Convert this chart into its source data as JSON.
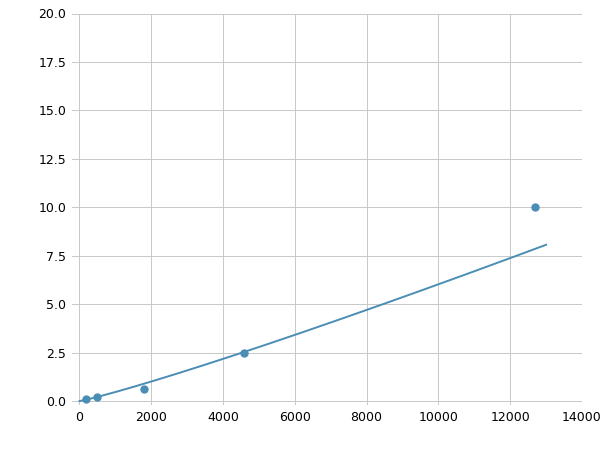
{
  "x_data": [
    200,
    500,
    1800,
    4600,
    12700
  ],
  "y_data": [
    0.1,
    0.2,
    0.6,
    2.5,
    10.0
  ],
  "x_curve_start": 0,
  "x_curve_end": 13000,
  "line_color": "#4a8db5",
  "marker_color": "#4a8db5",
  "marker_size": 5,
  "line_width": 1.4,
  "xlim": [
    -200,
    14000
  ],
  "ylim": [
    -0.2,
    20.0
  ],
  "xticks": [
    0,
    2000,
    4000,
    6000,
    8000,
    10000,
    12000,
    14000
  ],
  "yticks": [
    0.0,
    2.5,
    5.0,
    7.5,
    10.0,
    12.5,
    15.0,
    17.5,
    20.0
  ],
  "grid_color": "#c8c8c8",
  "background_color": "#ffffff",
  "figure_bg": "#ffffff"
}
